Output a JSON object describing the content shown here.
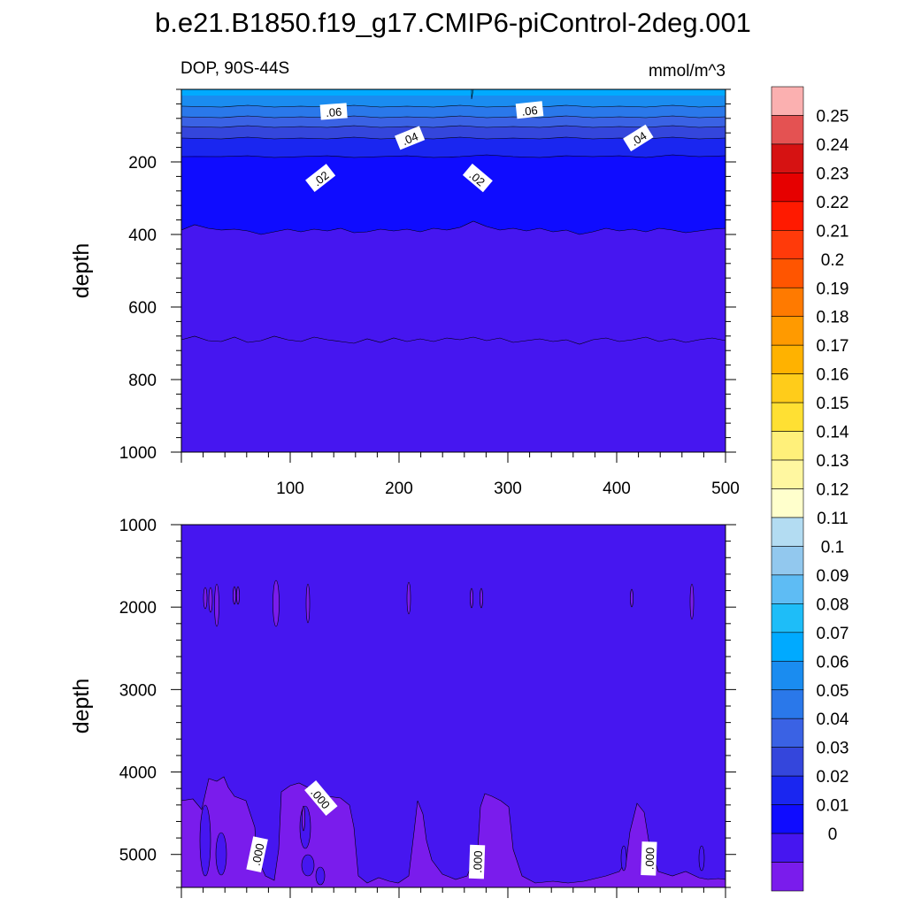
{
  "figure": {
    "title": "b.e21.B1850.f19_g17.CMIP6-piControl-2deg.001"
  },
  "chart_data": [
    {
      "type": "heatmap",
      "subtype": "filled-contour",
      "panel": "upper",
      "left_title": "DOP, 90S-44S",
      "right_title": "mmol/m^3",
      "ylabel": "depth",
      "xlabel": "",
      "xlim": [
        0,
        500
      ],
      "ylim": [
        1000,
        0
      ],
      "y_inverted": true,
      "x_ticks": [
        "100",
        "200",
        "300",
        "400",
        "500"
      ],
      "y_ticks": [
        "200",
        "400",
        "600",
        "800",
        "1000"
      ],
      "contour_bands": [
        {
          "from_depth": 0,
          "to_depth": 40,
          "value": 0.065
        },
        {
          "from_depth": 40,
          "to_depth": 80,
          "value": 0.055
        },
        {
          "from_depth": 80,
          "to_depth": 105,
          "value": 0.045
        },
        {
          "from_depth": 105,
          "to_depth": 130,
          "value": 0.038
        },
        {
          "from_depth": 130,
          "to_depth": 155,
          "value": 0.033
        },
        {
          "from_depth": 155,
          "to_depth": 180,
          "value": 0.028
        },
        {
          "from_depth": 180,
          "to_depth": 255,
          "value": 0.025
        },
        {
          "from_depth": 255,
          "to_depth": 385,
          "value": 0.015
        },
        {
          "from_depth": 385,
          "to_depth": 1000,
          "value": 0.005
        }
      ],
      "contour_labels": [
        {
          "text": ".06",
          "x": 140,
          "depth": 62
        },
        {
          "text": ".06",
          "x": 320,
          "depth": 58
        },
        {
          "text": ".04",
          "x": 210,
          "depth": 135
        },
        {
          "text": ".04",
          "x": 420,
          "depth": 135
        },
        {
          "text": ".02",
          "x": 128,
          "depth": 245
        },
        {
          "text": ".02",
          "x": 272,
          "depth": 245
        }
      ]
    },
    {
      "type": "heatmap",
      "subtype": "filled-contour",
      "panel": "lower",
      "ylabel": "depth",
      "xlim": [
        0,
        500
      ],
      "ylim": [
        5400,
        1000
      ],
      "y_inverted": true,
      "y_ticks": [
        "1000",
        "2000",
        "3000",
        "4000",
        "5000"
      ],
      "background_value": 0.005,
      "contour_labels": [
        {
          "text": ".000",
          "x": 70,
          "depth": 5000
        },
        {
          "text": ".000",
          "x": 128,
          "depth": 4320
        },
        {
          "text": ".000",
          "x": 272,
          "depth": 5090
        },
        {
          "text": ".000",
          "x": 430,
          "depth": 5050
        }
      ]
    }
  ],
  "colorbar": {
    "labels": [
      "0.25",
      "0.24",
      "0.23",
      "0.22",
      "0.21",
      "0.2",
      "0.19",
      "0.18",
      "0.17",
      "0.16",
      "0.15",
      "0.14",
      "0.13",
      "0.12",
      "0.11",
      "0.1",
      "0.09",
      "0.08",
      "0.07",
      "0.06",
      "0.05",
      "0.04",
      "0.03",
      "0.02",
      "0.01",
      "0"
    ],
    "colors": [
      "#fbb0b0",
      "#e45252",
      "#d61212",
      "#e60000",
      "#ff1a00",
      "#ff3a0a",
      "#ff5500",
      "#ff7a00",
      "#ff9a00",
      "#ffb200",
      "#ffcc1a",
      "#ffe033",
      "#fff07a",
      "#fff7a0",
      "#ffffcc",
      "#b3dcf2",
      "#92c8ee",
      "#5ebcf4",
      "#1ebdf8",
      "#00aaff",
      "#1a8cf0",
      "#2a78ea",
      "#3a62e4",
      "#3446dc",
      "#1a26f0",
      "#0f0cff",
      "#4616f0",
      "#7a1cec"
    ]
  }
}
